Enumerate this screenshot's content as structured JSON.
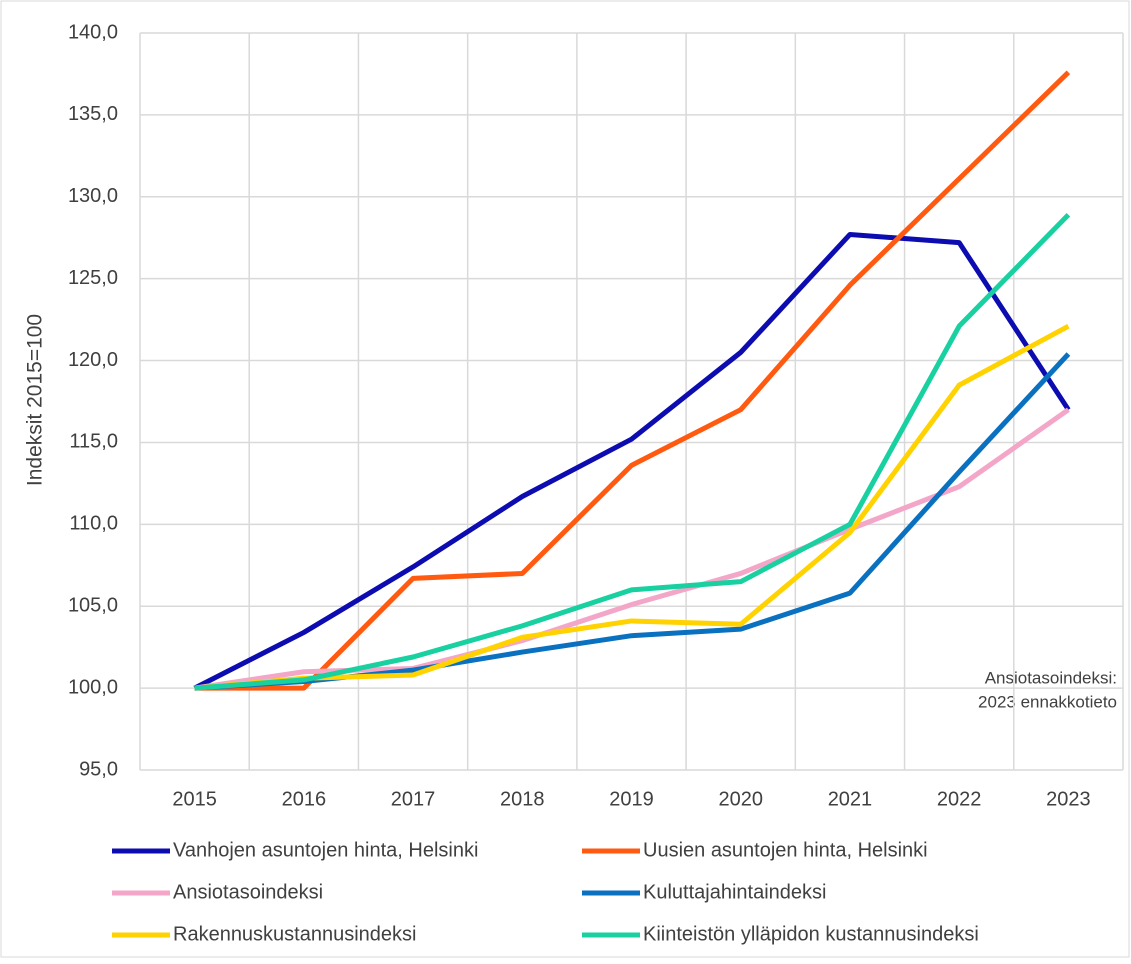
{
  "chart_data": {
    "type": "line",
    "y_label": "Indeksit 2015=100",
    "annotation": [
      "Ansiotasoindeksi:",
      "2023 ennakkotieto"
    ],
    "categories": [
      "2015",
      "2016",
      "2017",
      "2018",
      "2019",
      "2020",
      "2021",
      "2022",
      "2023"
    ],
    "series": [
      {
        "name": "Vanhojen asuntojen hinta, Helsinki",
        "color": "#0c0cb0",
        "values": [
          100,
          103.4,
          107.4,
          111.7,
          115.2,
          120.5,
          127.7,
          127.2,
          117.0
        ]
      },
      {
        "name": "Uusien asuntojen hinta, Helsinki",
        "color": "#ff5a10",
        "values": [
          100,
          100.0,
          106.7,
          107.0,
          113.6,
          117.0,
          124.6,
          131.1,
          137.6
        ]
      },
      {
        "name": "Ansiotasoindeksi",
        "color": "#f4a6c8",
        "values": [
          100,
          101.0,
          101.2,
          102.9,
          105.1,
          107.0,
          109.7,
          112.3,
          117.0
        ]
      },
      {
        "name": "Kuluttajahintaindeksi",
        "color": "#0a70c0",
        "values": [
          100,
          100.4,
          101.1,
          102.2,
          103.2,
          103.6,
          105.8,
          113.2,
          120.4
        ]
      },
      {
        "name": "Rakennuskustannusindeksi",
        "color": "#ffd200",
        "values": [
          100,
          100.6,
          100.8,
          103.1,
          104.1,
          103.9,
          109.5,
          118.5,
          122.1
        ]
      },
      {
        "name": "Kiinteistön ylläpidon kustannusindeksi",
        "color": "#18d0a0",
        "values": [
          100,
          100.5,
          101.9,
          103.8,
          106.0,
          106.5,
          110.0,
          122.1,
          128.9
        ]
      }
    ],
    "ylim": [
      95,
      140
    ],
    "yticks": [
      {
        "value": 95,
        "label": "95,0"
      },
      {
        "value": 100,
        "label": "100,0"
      },
      {
        "value": 105,
        "label": "105,0"
      },
      {
        "value": 110,
        "label": "110,0"
      },
      {
        "value": 115,
        "label": "115,0"
      },
      {
        "value": 120,
        "label": "120,0"
      },
      {
        "value": 125,
        "label": "125,0"
      },
      {
        "value": 130,
        "label": "130,0"
      },
      {
        "value": 135,
        "label": "135,0"
      },
      {
        "value": 140,
        "label": "140,0"
      }
    ],
    "grid": true
  }
}
